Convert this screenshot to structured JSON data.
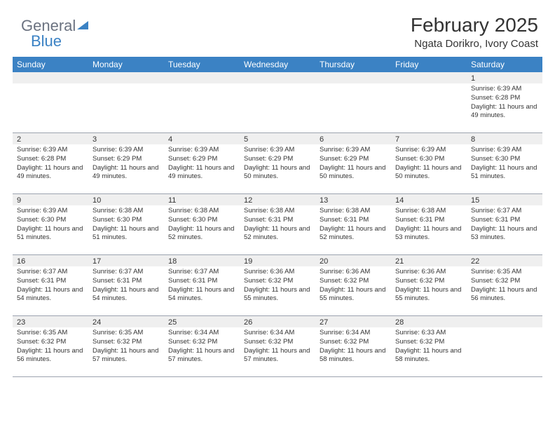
{
  "logo": {
    "part1": "General",
    "part2": "Blue"
  },
  "title": "February 2025",
  "location": "Ngata Dorikro, Ivory Coast",
  "colors": {
    "header_bg": "#3b82c4",
    "header_text": "#ffffff",
    "daynum_bg": "#efefef",
    "border": "#9ca3af",
    "text": "#333333",
    "logo_gray": "#6b7280",
    "logo_blue": "#3b82c4"
  },
  "dayNames": [
    "Sunday",
    "Monday",
    "Tuesday",
    "Wednesday",
    "Thursday",
    "Friday",
    "Saturday"
  ],
  "weeks": [
    [
      {
        "n": "",
        "sunrise": "",
        "sunset": "",
        "daylight": ""
      },
      {
        "n": "",
        "sunrise": "",
        "sunset": "",
        "daylight": ""
      },
      {
        "n": "",
        "sunrise": "",
        "sunset": "",
        "daylight": ""
      },
      {
        "n": "",
        "sunrise": "",
        "sunset": "",
        "daylight": ""
      },
      {
        "n": "",
        "sunrise": "",
        "sunset": "",
        "daylight": ""
      },
      {
        "n": "",
        "sunrise": "",
        "sunset": "",
        "daylight": ""
      },
      {
        "n": "1",
        "sunrise": "Sunrise: 6:39 AM",
        "sunset": "Sunset: 6:28 PM",
        "daylight": "Daylight: 11 hours and 49 minutes."
      }
    ],
    [
      {
        "n": "2",
        "sunrise": "Sunrise: 6:39 AM",
        "sunset": "Sunset: 6:28 PM",
        "daylight": "Daylight: 11 hours and 49 minutes."
      },
      {
        "n": "3",
        "sunrise": "Sunrise: 6:39 AM",
        "sunset": "Sunset: 6:29 PM",
        "daylight": "Daylight: 11 hours and 49 minutes."
      },
      {
        "n": "4",
        "sunrise": "Sunrise: 6:39 AM",
        "sunset": "Sunset: 6:29 PM",
        "daylight": "Daylight: 11 hours and 49 minutes."
      },
      {
        "n": "5",
        "sunrise": "Sunrise: 6:39 AM",
        "sunset": "Sunset: 6:29 PM",
        "daylight": "Daylight: 11 hours and 50 minutes."
      },
      {
        "n": "6",
        "sunrise": "Sunrise: 6:39 AM",
        "sunset": "Sunset: 6:29 PM",
        "daylight": "Daylight: 11 hours and 50 minutes."
      },
      {
        "n": "7",
        "sunrise": "Sunrise: 6:39 AM",
        "sunset": "Sunset: 6:30 PM",
        "daylight": "Daylight: 11 hours and 50 minutes."
      },
      {
        "n": "8",
        "sunrise": "Sunrise: 6:39 AM",
        "sunset": "Sunset: 6:30 PM",
        "daylight": "Daylight: 11 hours and 51 minutes."
      }
    ],
    [
      {
        "n": "9",
        "sunrise": "Sunrise: 6:39 AM",
        "sunset": "Sunset: 6:30 PM",
        "daylight": "Daylight: 11 hours and 51 minutes."
      },
      {
        "n": "10",
        "sunrise": "Sunrise: 6:38 AM",
        "sunset": "Sunset: 6:30 PM",
        "daylight": "Daylight: 11 hours and 51 minutes."
      },
      {
        "n": "11",
        "sunrise": "Sunrise: 6:38 AM",
        "sunset": "Sunset: 6:30 PM",
        "daylight": "Daylight: 11 hours and 52 minutes."
      },
      {
        "n": "12",
        "sunrise": "Sunrise: 6:38 AM",
        "sunset": "Sunset: 6:31 PM",
        "daylight": "Daylight: 11 hours and 52 minutes."
      },
      {
        "n": "13",
        "sunrise": "Sunrise: 6:38 AM",
        "sunset": "Sunset: 6:31 PM",
        "daylight": "Daylight: 11 hours and 52 minutes."
      },
      {
        "n": "14",
        "sunrise": "Sunrise: 6:38 AM",
        "sunset": "Sunset: 6:31 PM",
        "daylight": "Daylight: 11 hours and 53 minutes."
      },
      {
        "n": "15",
        "sunrise": "Sunrise: 6:37 AM",
        "sunset": "Sunset: 6:31 PM",
        "daylight": "Daylight: 11 hours and 53 minutes."
      }
    ],
    [
      {
        "n": "16",
        "sunrise": "Sunrise: 6:37 AM",
        "sunset": "Sunset: 6:31 PM",
        "daylight": "Daylight: 11 hours and 54 minutes."
      },
      {
        "n": "17",
        "sunrise": "Sunrise: 6:37 AM",
        "sunset": "Sunset: 6:31 PM",
        "daylight": "Daylight: 11 hours and 54 minutes."
      },
      {
        "n": "18",
        "sunrise": "Sunrise: 6:37 AM",
        "sunset": "Sunset: 6:31 PM",
        "daylight": "Daylight: 11 hours and 54 minutes."
      },
      {
        "n": "19",
        "sunrise": "Sunrise: 6:36 AM",
        "sunset": "Sunset: 6:32 PM",
        "daylight": "Daylight: 11 hours and 55 minutes."
      },
      {
        "n": "20",
        "sunrise": "Sunrise: 6:36 AM",
        "sunset": "Sunset: 6:32 PM",
        "daylight": "Daylight: 11 hours and 55 minutes."
      },
      {
        "n": "21",
        "sunrise": "Sunrise: 6:36 AM",
        "sunset": "Sunset: 6:32 PM",
        "daylight": "Daylight: 11 hours and 55 minutes."
      },
      {
        "n": "22",
        "sunrise": "Sunrise: 6:35 AM",
        "sunset": "Sunset: 6:32 PM",
        "daylight": "Daylight: 11 hours and 56 minutes."
      }
    ],
    [
      {
        "n": "23",
        "sunrise": "Sunrise: 6:35 AM",
        "sunset": "Sunset: 6:32 PM",
        "daylight": "Daylight: 11 hours and 56 minutes."
      },
      {
        "n": "24",
        "sunrise": "Sunrise: 6:35 AM",
        "sunset": "Sunset: 6:32 PM",
        "daylight": "Daylight: 11 hours and 57 minutes."
      },
      {
        "n": "25",
        "sunrise": "Sunrise: 6:34 AM",
        "sunset": "Sunset: 6:32 PM",
        "daylight": "Daylight: 11 hours and 57 minutes."
      },
      {
        "n": "26",
        "sunrise": "Sunrise: 6:34 AM",
        "sunset": "Sunset: 6:32 PM",
        "daylight": "Daylight: 11 hours and 57 minutes."
      },
      {
        "n": "27",
        "sunrise": "Sunrise: 6:34 AM",
        "sunset": "Sunset: 6:32 PM",
        "daylight": "Daylight: 11 hours and 58 minutes."
      },
      {
        "n": "28",
        "sunrise": "Sunrise: 6:33 AM",
        "sunset": "Sunset: 6:32 PM",
        "daylight": "Daylight: 11 hours and 58 minutes."
      },
      {
        "n": "",
        "sunrise": "",
        "sunset": "",
        "daylight": ""
      }
    ]
  ]
}
